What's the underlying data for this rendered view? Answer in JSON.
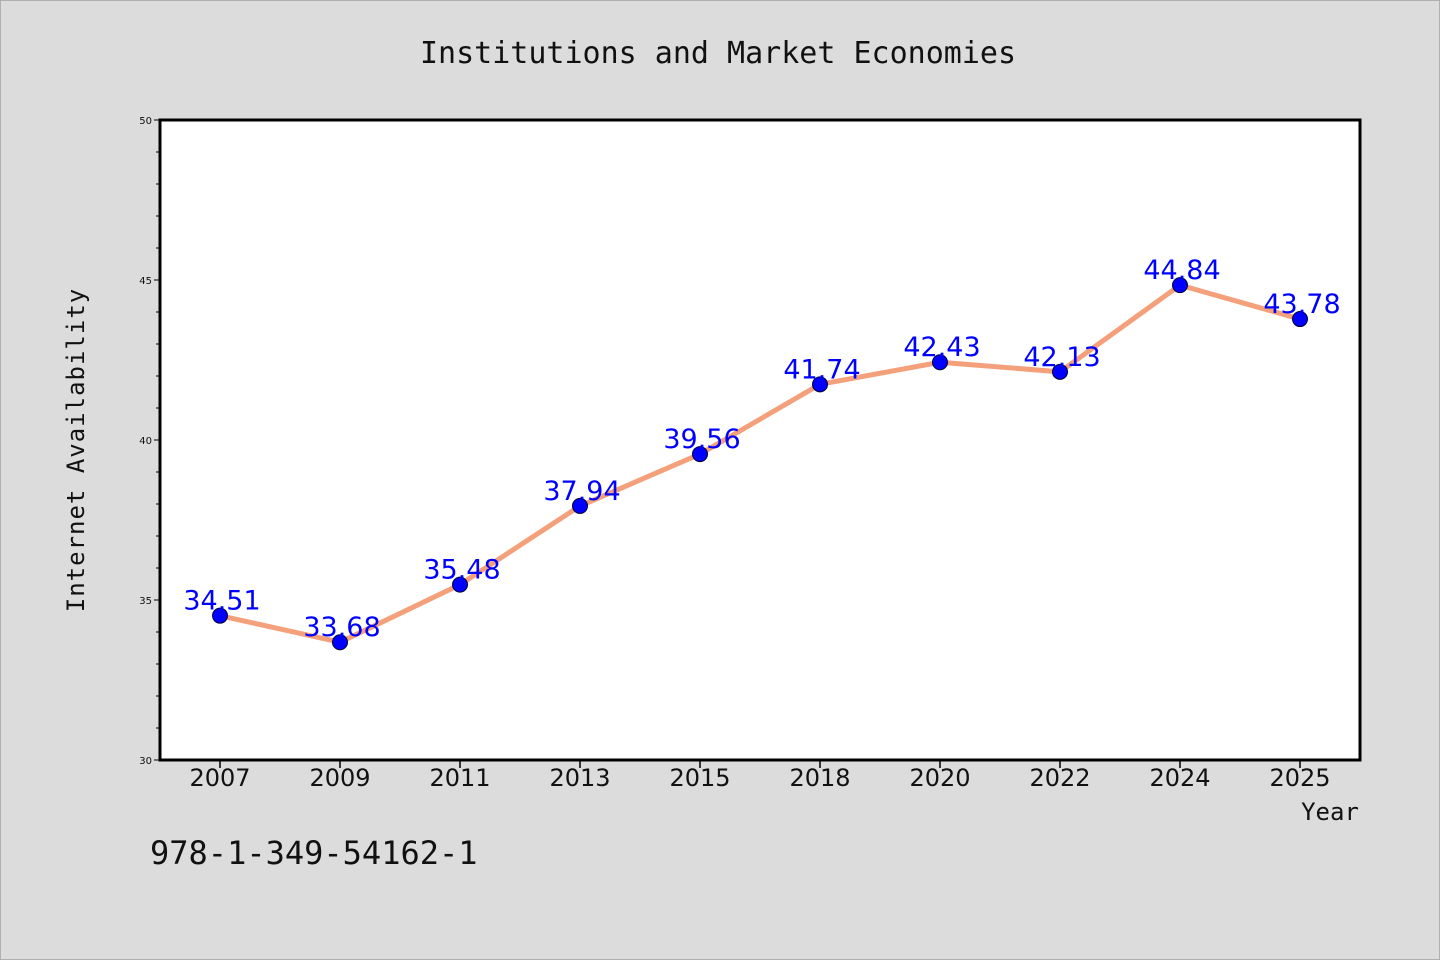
{
  "chart_data": {
    "type": "line",
    "title": "Institutions and Market Economies",
    "xlabel": "Year",
    "ylabel": "Internet Availability",
    "categories": [
      "2007",
      "2009",
      "2011",
      "2013",
      "2015",
      "2018",
      "2020",
      "2022",
      "2024",
      "2025"
    ],
    "series": [
      {
        "values": [
          34.51,
          33.68,
          35.48,
          37.94,
          39.56,
          41.74,
          42.43,
          42.13,
          44.84,
          43.78
        ],
        "line_color": "#f4a07a",
        "marker_color": "#0000ff",
        "label_color": "#0000ff"
      }
    ],
    "data_labels": [
      "34.51",
      "33.68",
      "35.48",
      "37.94",
      "39.56",
      "41.74",
      "42.43",
      "42.13",
      "44.84",
      "43.78"
    ],
    "ylim": [
      30,
      50
    ],
    "y_ticks": [
      "30",
      "35",
      "40",
      "45",
      "50"
    ],
    "grid": false,
    "background_color": "#dcdcdc",
    "plot_background_color": "#ffffff"
  },
  "footer": {
    "isbn": "978-1-349-54162-1"
  }
}
